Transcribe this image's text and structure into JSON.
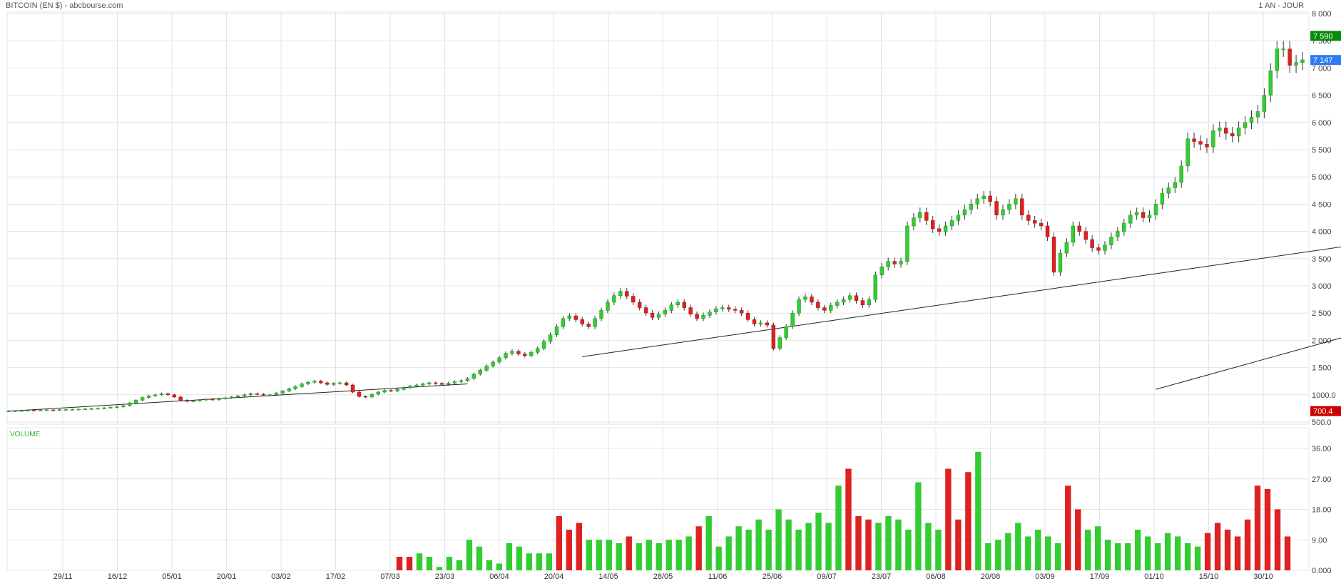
{
  "header": {
    "title": "BITCOIN (EN $) - abcbourse.com",
    "period": "1 AN - JOUR"
  },
  "chart_data": [
    {
      "type": "candlestick",
      "panel": "price",
      "y_ticks": [
        "8 000",
        "7 500",
        "7 000",
        "6 500",
        "6 000",
        "5 500",
        "5 000",
        "4 500",
        "4 000",
        "3 500",
        "3 000",
        "2 500",
        "2 000",
        "1 500",
        "1000.0",
        "500.0"
      ],
      "ylim": [
        500,
        8000
      ],
      "badges": [
        {
          "label": "7 590",
          "value": 7590,
          "color": "#0a8a0a"
        },
        {
          "label": "7 147",
          "value": 7147,
          "color": "#2f7bf0"
        },
        {
          "label": "700.4",
          "value": 700.4,
          "color": "#cc0000"
        }
      ],
      "close_series": [
        700,
        705,
        710,
        715,
        712,
        718,
        722,
        720,
        725,
        728,
        730,
        735,
        740,
        745,
        750,
        760,
        770,
        780,
        800,
        850,
        900,
        950,
        980,
        1000,
        1020,
        1000,
        960,
        900,
        880,
        890,
        905,
        918,
        910,
        930,
        945,
        960,
        980,
        1000,
        1020,
        1010,
        995,
        1000,
        1030,
        1070,
        1110,
        1150,
        1200,
        1230,
        1250,
        1220,
        1190,
        1210,
        1220,
        1180,
        1050,
        970,
        960,
        1010,
        1050,
        1080,
        1070,
        1100,
        1130,
        1160,
        1180,
        1200,
        1220,
        1210,
        1190,
        1215,
        1240,
        1260,
        1300,
        1380,
        1450,
        1530,
        1600,
        1680,
        1760,
        1800,
        1750,
        1720,
        1780,
        1850,
        1980,
        2100,
        2250,
        2400,
        2450,
        2380,
        2300,
        2250,
        2400,
        2550,
        2700,
        2820,
        2900,
        2810,
        2700,
        2600,
        2500,
        2420,
        2480,
        2550,
        2650,
        2700,
        2600,
        2480,
        2400,
        2460,
        2520,
        2580,
        2600,
        2570,
        2550,
        2500,
        2380,
        2300,
        2320,
        2280,
        1850,
        2050,
        2250,
        2500,
        2750,
        2800,
        2700,
        2600,
        2550,
        2640,
        2700,
        2750,
        2820,
        2730,
        2650,
        2750,
        3200,
        3350,
        3450,
        3400,
        3450,
        4100,
        4250,
        4350,
        4200,
        4050,
        4000,
        4100,
        4200,
        4300,
        4400,
        4500,
        4600,
        4650,
        4550,
        4300,
        4400,
        4500,
        4600,
        4300,
        4200,
        4150,
        4100,
        3900,
        3250,
        3600,
        3800,
        4100,
        4000,
        3850,
        3700,
        3650,
        3750,
        3900,
        4000,
        4150,
        4300,
        4350,
        4250,
        4300,
        4500,
        4700,
        4800,
        4900,
        5200,
        5700,
        5650,
        5600,
        5550,
        5850,
        5900,
        5800,
        5750,
        5900,
        6000,
        6100,
        6200,
        6500,
        6950,
        7350,
        7350,
        7050,
        7100,
        7150
      ],
      "event_index": 172,
      "trendlines": [
        {
          "from": {
            "x": 0,
            "y": 700
          },
          "to": {
            "x": 72,
            "y": 1200
          }
        },
        {
          "from": {
            "x": 180,
            "y": 1100
          },
          "to": {
            "x": 260,
            "y": 3700
          }
        },
        {
          "from": {
            "x": 90,
            "y": 1700
          },
          "to": {
            "x": 220,
            "y": 3900
          }
        }
      ]
    },
    {
      "type": "bar",
      "panel": "volume",
      "title": "VOLUME",
      "y_ticks": [
        "36.00",
        "27.00",
        "18.00",
        "9.00",
        "0.000"
      ],
      "ylim": [
        0,
        40
      ],
      "x_tick_labels": [
        "29/11",
        "16/12",
        "05/01",
        "20/01",
        "03/02",
        "17/02",
        "07/03",
        "23/03",
        "06/04",
        "20/04",
        "14/05",
        "28/05",
        "11/06",
        "25/06",
        "09/07",
        "23/07",
        "06/08",
        "20/08",
        "03/09",
        "17/09",
        "01/10",
        "15/10",
        "30/10"
      ],
      "bars": [
        {
          "v": 4,
          "c": "r"
        },
        {
          "v": 4,
          "c": "r"
        },
        {
          "v": 5,
          "c": "g"
        },
        {
          "v": 4,
          "c": "g"
        },
        {
          "v": 1,
          "c": "g"
        },
        {
          "v": 4,
          "c": "g"
        },
        {
          "v": 3,
          "c": "g"
        },
        {
          "v": 9,
          "c": "g"
        },
        {
          "v": 7,
          "c": "g"
        },
        {
          "v": 3,
          "c": "g"
        },
        {
          "v": 2,
          "c": "g"
        },
        {
          "v": 8,
          "c": "g"
        },
        {
          "v": 7,
          "c": "g"
        },
        {
          "v": 5,
          "c": "g"
        },
        {
          "v": 5,
          "c": "g"
        },
        {
          "v": 5,
          "c": "g"
        },
        {
          "v": 16,
          "c": "r"
        },
        {
          "v": 12,
          "c": "r"
        },
        {
          "v": 14,
          "c": "r"
        },
        {
          "v": 9,
          "c": "g"
        },
        {
          "v": 9,
          "c": "g"
        },
        {
          "v": 9,
          "c": "g"
        },
        {
          "v": 8,
          "c": "g"
        },
        {
          "v": 10,
          "c": "r"
        },
        {
          "v": 8,
          "c": "g"
        },
        {
          "v": 9,
          "c": "g"
        },
        {
          "v": 8,
          "c": "g"
        },
        {
          "v": 9,
          "c": "g"
        },
        {
          "v": 9,
          "c": "g"
        },
        {
          "v": 10,
          "c": "g"
        },
        {
          "v": 13,
          "c": "r"
        },
        {
          "v": 16,
          "c": "g"
        },
        {
          "v": 7,
          "c": "g"
        },
        {
          "v": 10,
          "c": "g"
        },
        {
          "v": 13,
          "c": "g"
        },
        {
          "v": 12,
          "c": "g"
        },
        {
          "v": 15,
          "c": "g"
        },
        {
          "v": 12,
          "c": "g"
        },
        {
          "v": 18,
          "c": "g"
        },
        {
          "v": 15,
          "c": "g"
        },
        {
          "v": 12,
          "c": "g"
        },
        {
          "v": 14,
          "c": "g"
        },
        {
          "v": 17,
          "c": "g"
        },
        {
          "v": 14,
          "c": "g"
        },
        {
          "v": 25,
          "c": "g"
        },
        {
          "v": 30,
          "c": "r"
        },
        {
          "v": 16,
          "c": "r"
        },
        {
          "v": 15,
          "c": "r"
        },
        {
          "v": 14,
          "c": "g"
        },
        {
          "v": 16,
          "c": "g"
        },
        {
          "v": 15,
          "c": "g"
        },
        {
          "v": 12,
          "c": "g"
        },
        {
          "v": 26,
          "c": "g"
        },
        {
          "v": 14,
          "c": "g"
        },
        {
          "v": 12,
          "c": "g"
        },
        {
          "v": 30,
          "c": "r"
        },
        {
          "v": 15,
          "c": "r"
        },
        {
          "v": 29,
          "c": "r"
        },
        {
          "v": 35,
          "c": "g"
        },
        {
          "v": 8,
          "c": "g"
        },
        {
          "v": 9,
          "c": "g"
        },
        {
          "v": 11,
          "c": "g"
        },
        {
          "v": 14,
          "c": "g"
        },
        {
          "v": 10,
          "c": "g"
        },
        {
          "v": 12,
          "c": "g"
        },
        {
          "v": 10,
          "c": "g"
        },
        {
          "v": 8,
          "c": "g"
        },
        {
          "v": 25,
          "c": "r"
        },
        {
          "v": 18,
          "c": "r"
        },
        {
          "v": 12,
          "c": "g"
        },
        {
          "v": 13,
          "c": "g"
        },
        {
          "v": 9,
          "c": "g"
        },
        {
          "v": 8,
          "c": "g"
        },
        {
          "v": 8,
          "c": "g"
        },
        {
          "v": 12,
          "c": "g"
        },
        {
          "v": 10,
          "c": "g"
        },
        {
          "v": 8,
          "c": "g"
        },
        {
          "v": 11,
          "c": "g"
        },
        {
          "v": 10,
          "c": "g"
        },
        {
          "v": 8,
          "c": "g"
        },
        {
          "v": 7,
          "c": "g"
        },
        {
          "v": 11,
          "c": "r"
        },
        {
          "v": 14,
          "c": "r"
        },
        {
          "v": 12,
          "c": "r"
        },
        {
          "v": 10,
          "c": "r"
        },
        {
          "v": 15,
          "c": "r"
        },
        {
          "v": 25,
          "c": "r"
        },
        {
          "v": 24,
          "c": "r"
        },
        {
          "v": 18,
          "c": "r"
        },
        {
          "v": 10,
          "c": "r"
        }
      ]
    }
  ],
  "colors": {
    "up": "#33cc33",
    "down": "#dd2222",
    "grid": "#e4e4e4",
    "line": "#222222"
  }
}
